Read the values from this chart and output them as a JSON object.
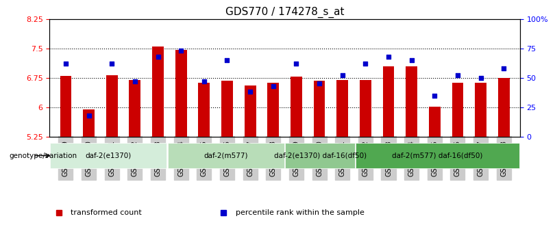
{
  "title": "GDS770 / 174278_s_at",
  "samples": [
    "GSM28389",
    "GSM28390",
    "GSM28391",
    "GSM28392",
    "GSM28393",
    "GSM28394",
    "GSM28395",
    "GSM28396",
    "GSM28397",
    "GSM28398",
    "GSM28399",
    "GSM28400",
    "GSM28401",
    "GSM28402",
    "GSM28403",
    "GSM28404",
    "GSM28405",
    "GSM28406",
    "GSM28407",
    "GSM28408"
  ],
  "bar_values": [
    6.8,
    5.95,
    6.82,
    6.7,
    7.55,
    7.45,
    6.62,
    6.68,
    6.55,
    6.62,
    6.78,
    6.68,
    6.7,
    6.7,
    7.05,
    7.05,
    6.02,
    6.62,
    6.62,
    6.75
  ],
  "percentile_values": [
    62,
    18,
    62,
    47,
    68,
    73,
    47,
    65,
    38,
    43,
    62,
    45,
    52,
    62,
    68,
    65,
    35,
    52,
    50,
    58
  ],
  "ylim_left": [
    5.25,
    8.25
  ],
  "ylim_right": [
    0,
    100
  ],
  "yticks_left": [
    5.25,
    6.0,
    6.75,
    7.5,
    8.25
  ],
  "yticks_right": [
    0,
    25,
    50,
    75,
    100
  ],
  "ytick_labels_left": [
    "5.25",
    "6",
    "6.75",
    "7.5",
    "8.25"
  ],
  "ytick_labels_right": [
    "0",
    "25",
    "50",
    "75",
    "100%"
  ],
  "bar_color": "#cc0000",
  "dot_color": "#0000cc",
  "baseline": 5.25,
  "groups": [
    {
      "label": "daf-2(e1370)",
      "start": 0,
      "end": 5,
      "color": "#d4edda"
    },
    {
      "label": "daf-2(m577)",
      "start": 5,
      "end": 10,
      "color": "#b8ddb8"
    },
    {
      "label": "daf-2(e1370) daf-16(df50)",
      "start": 10,
      "end": 13,
      "color": "#90c890"
    },
    {
      "label": "daf-2(m577) daf-16(df50)",
      "start": 13,
      "end": 20,
      "color": "#50a850"
    }
  ],
  "genotype_label": "genotype/variation",
  "legend_items": [
    {
      "label": "transformed count",
      "color": "#cc0000",
      "marker": "s"
    },
    {
      "label": "percentile rank within the sample",
      "color": "#0000cc",
      "marker": "s"
    }
  ],
  "grid_color": "black",
  "tick_label_bg": "#cccccc"
}
